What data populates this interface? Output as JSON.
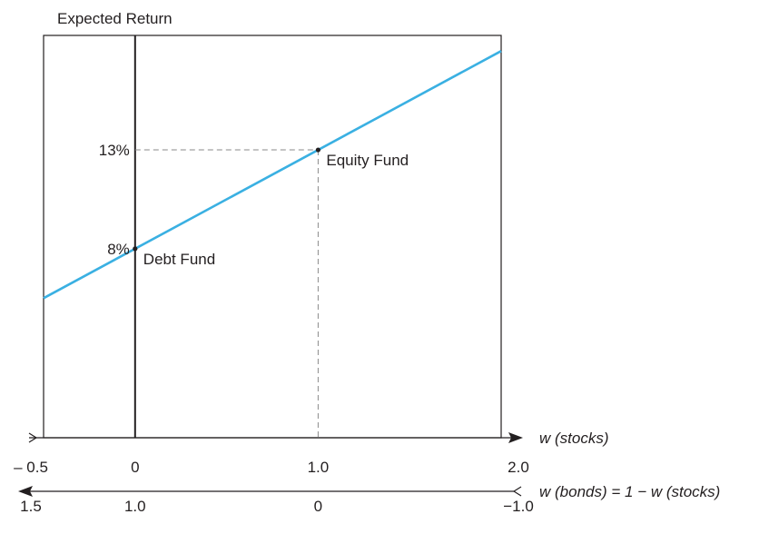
{
  "chart_data": {
    "type": "line",
    "title": "Expected Return",
    "xlabel_top": "w (stocks)",
    "xlabel_bottom": "w (bonds) = 1 − w (stocks)",
    "x_ticks_stocks": [
      {
        "value": -0.5,
        "label": "– 0.5"
      },
      {
        "value": 0,
        "label": "0"
      },
      {
        "value": 1.0,
        "label": "1.0"
      },
      {
        "value": 2.0,
        "label": "2.0"
      }
    ],
    "x_ticks_bonds": [
      {
        "value": -0.5,
        "label": "1.5"
      },
      {
        "value": 0,
        "label": "1.0"
      },
      {
        "value": 1.0,
        "label": "0"
      },
      {
        "value": 2.0,
        "label": "−1.0"
      }
    ],
    "y_ticks": [
      {
        "value": 8,
        "label": "8%"
      },
      {
        "value": 13,
        "label": "13%"
      }
    ],
    "xlim": [
      -0.5,
      2.0
    ],
    "ylim": [
      -1.56,
      18.79
    ],
    "series": [
      {
        "x": [
          -0.5,
          2.0
        ],
        "y": [
          5.5,
          18.0
        ],
        "color": "#3ab0e2"
      }
    ],
    "points": [
      {
        "x": 0,
        "y": 8,
        "label": "Debt Fund"
      },
      {
        "x": 1.0,
        "y": 13,
        "label": "Equity Fund"
      }
    ],
    "grid": false
  }
}
